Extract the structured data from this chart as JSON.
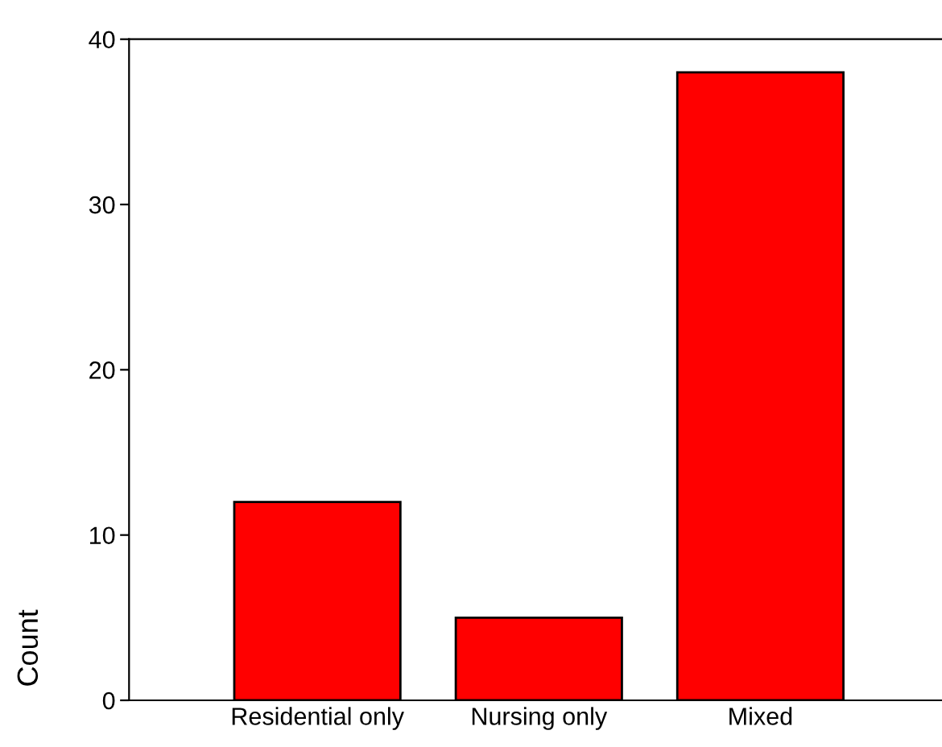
{
  "chart_data": {
    "type": "bar",
    "ylabel": "Count",
    "categories": [
      "Residential only",
      "Nursing only",
      "Mixed"
    ],
    "values": [
      12,
      5,
      38
    ],
    "color": "#ff0000",
    "ylim": [
      0,
      40
    ],
    "yticks": [
      0,
      10,
      20,
      30,
      40
    ],
    "grid": false,
    "legend": false
  }
}
